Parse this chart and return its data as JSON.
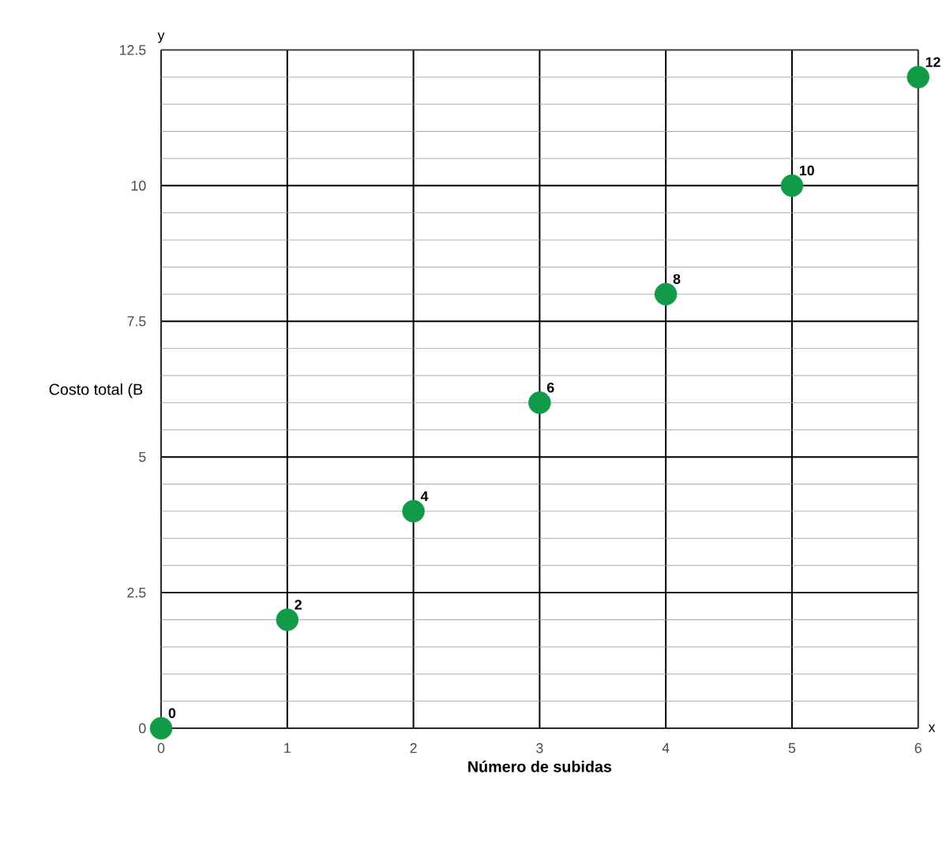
{
  "chart_data": {
    "type": "scatter",
    "xlabel": "Número de subidas",
    "ylabel": "Costo total (B",
    "x": [
      0,
      1,
      2,
      3,
      4,
      5,
      6
    ],
    "values": [
      0,
      2,
      4,
      6,
      8,
      10,
      12
    ],
    "color": "#119a48",
    "xlim": [
      0,
      6
    ],
    "ylim": [
      0,
      12.5
    ],
    "xticks": [
      0,
      1,
      2,
      3,
      4,
      5,
      6
    ],
    "yticks": [
      0,
      2.5,
      5,
      7.5,
      10,
      12.5
    ],
    "grid": true,
    "marker": "circle",
    "data_labels": true,
    "annotations": [
      "x",
      "y"
    ]
  }
}
